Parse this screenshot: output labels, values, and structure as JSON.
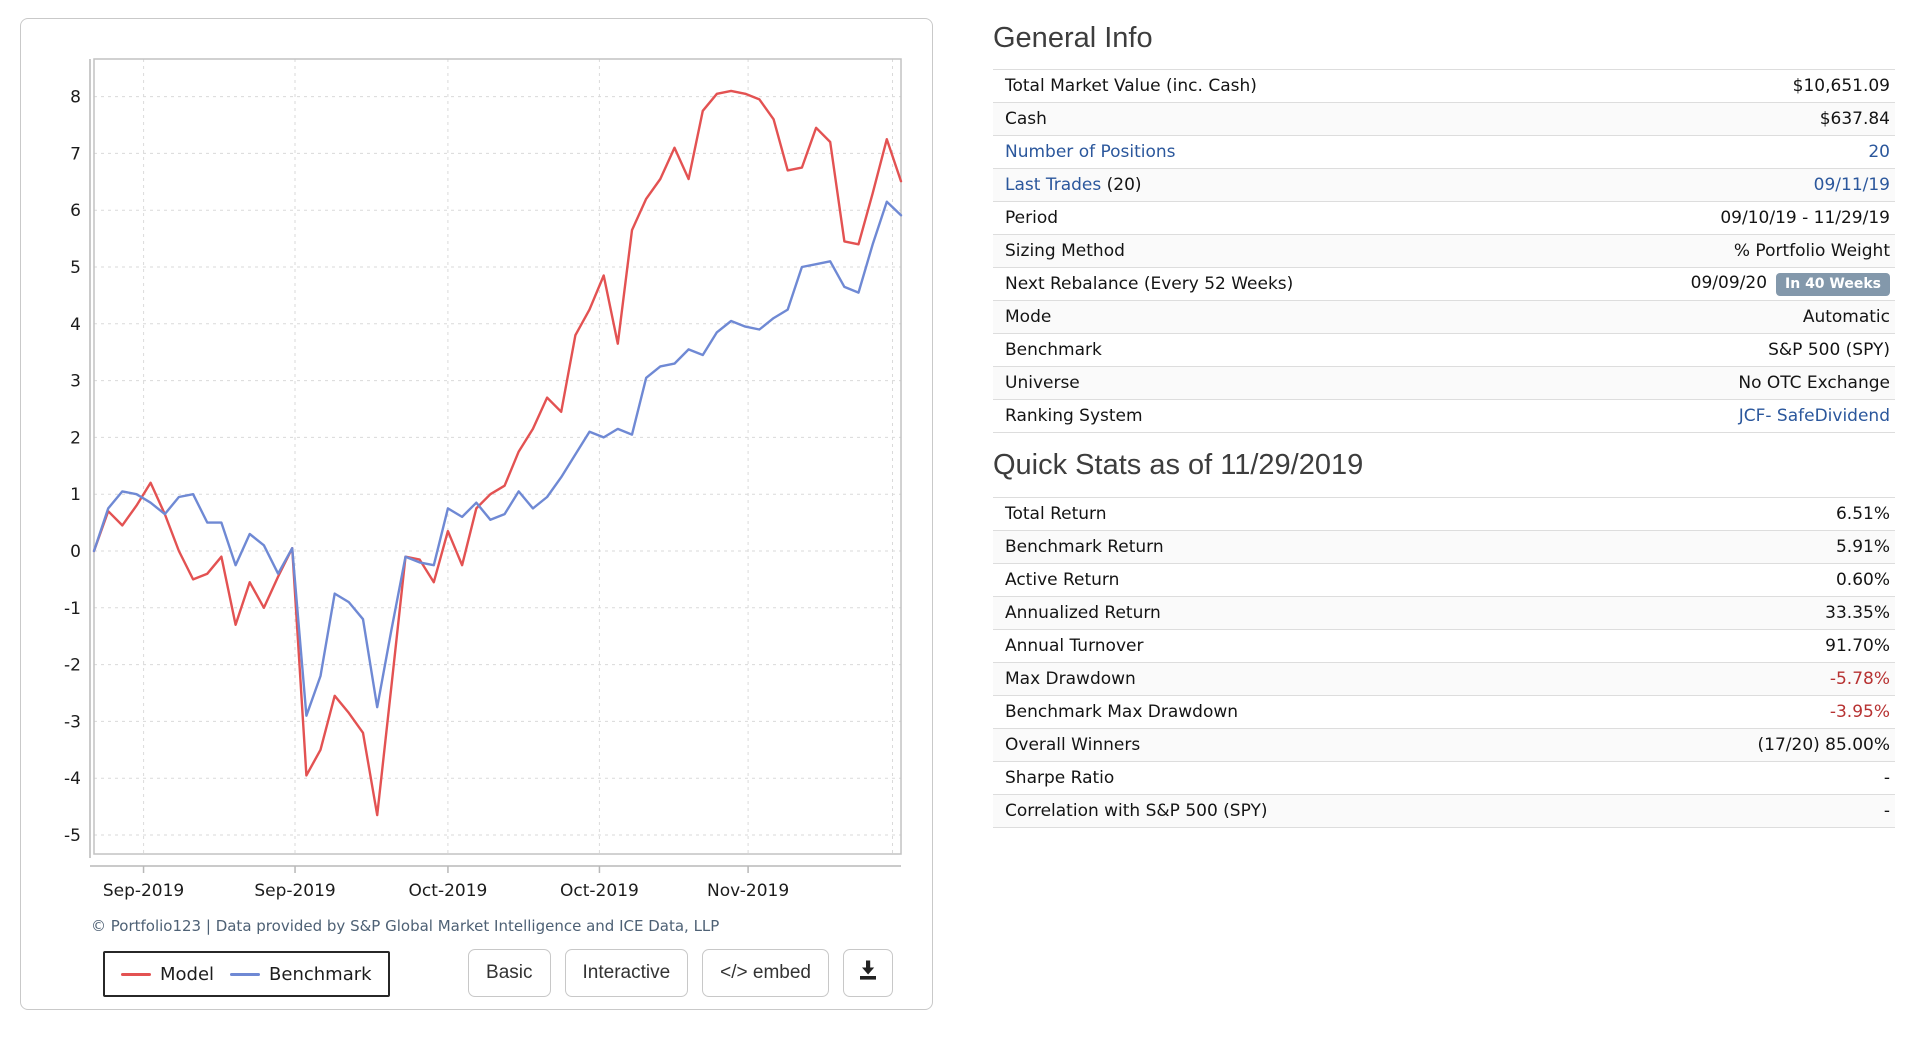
{
  "chart_card": {
    "attribution": "© Portfolio123 | Data provided by S&P Global Market Intelligence and ICE Data, LLP",
    "legend": [
      {
        "label": "Model",
        "color": "#e35252"
      },
      {
        "label": "Benchmark",
        "color": "#6f89d4"
      }
    ],
    "buttons": {
      "basic": "Basic",
      "interactive": "Interactive",
      "embed": "</> embed",
      "download_icon": "download-icon"
    }
  },
  "chart_data": {
    "type": "line",
    "title": "",
    "xlabel": "",
    "ylabel": "",
    "x_period": "09/10/19 - 11/29/19",
    "x_unit": "trading days",
    "ylim": [
      -5,
      8
    ],
    "grid": true,
    "legend_position": "bottom-left",
    "x_tick_labels": [
      "Sep-2019",
      "Sep-2019",
      "Oct-2019",
      "Oct-2019",
      "Nov-2019"
    ],
    "x_tick_positions": [
      3.5,
      14.2,
      25,
      35.7,
      46.2
    ],
    "extra_gridline_position": 56.4,
    "series": [
      {
        "name": "Model",
        "color": "#e35252",
        "values": [
          0.0,
          0.7,
          0.45,
          0.8,
          1.2,
          0.65,
          0.0,
          -0.5,
          -0.4,
          -0.1,
          -1.3,
          -0.55,
          -1.0,
          -0.45,
          0.05,
          -3.95,
          -3.5,
          -2.55,
          -2.85,
          -3.2,
          -4.65,
          -2.4,
          -0.1,
          -0.15,
          -0.55,
          0.35,
          -0.25,
          0.75,
          1.0,
          1.15,
          1.75,
          2.15,
          2.7,
          2.45,
          3.8,
          4.25,
          4.85,
          3.65,
          5.65,
          6.2,
          6.55,
          7.1,
          6.55,
          7.75,
          8.05,
          8.1,
          8.05,
          7.95,
          7.6,
          6.7,
          6.75,
          7.45,
          7.2,
          5.45,
          5.4,
          6.3,
          7.25,
          6.51
        ]
      },
      {
        "name": "Benchmark",
        "color": "#6f89d4",
        "values": [
          0.0,
          0.75,
          1.05,
          1.0,
          0.85,
          0.65,
          0.95,
          1.0,
          0.5,
          0.5,
          -0.25,
          0.3,
          0.1,
          -0.4,
          0.05,
          -2.9,
          -2.2,
          -0.75,
          -0.9,
          -1.2,
          -2.75,
          -1.4,
          -0.1,
          -0.2,
          -0.25,
          0.75,
          0.6,
          0.85,
          0.55,
          0.65,
          1.05,
          0.75,
          0.95,
          1.3,
          1.7,
          2.1,
          2.0,
          2.15,
          2.05,
          3.05,
          3.25,
          3.3,
          3.55,
          3.45,
          3.85,
          4.05,
          3.95,
          3.9,
          4.1,
          4.25,
          5.0,
          5.05,
          5.1,
          4.65,
          4.55,
          5.4,
          6.15,
          5.91
        ]
      }
    ]
  },
  "general_info": {
    "title": "General Info",
    "rows": [
      {
        "label": "Total Market Value (inc. Cash)",
        "value": "$10,651.09"
      },
      {
        "label": "Cash",
        "value": "$637.84"
      },
      {
        "label": "Number of Positions",
        "label_link": true,
        "value": "20",
        "value_link": true
      },
      {
        "label": "Last Trades",
        "label_link": true,
        "label_extra": " (20)",
        "value": "09/11/19",
        "value_link": true
      },
      {
        "label": "Period",
        "value": "09/10/19 - 11/29/19"
      },
      {
        "label": "Sizing Method",
        "value": "% Portfolio Weight"
      },
      {
        "label": "Next Rebalance (Every 52 Weeks)",
        "value": "09/09/20",
        "badge": "In 40 Weeks"
      },
      {
        "label": "Mode",
        "value": "Automatic"
      },
      {
        "label": "Benchmark",
        "value": "S&P 500 (SPY)"
      },
      {
        "label": "Universe",
        "value": "No OTC Exchange"
      },
      {
        "label": "Ranking System",
        "value": "JCF- SafeDividend",
        "value_link": true
      }
    ]
  },
  "quick_stats": {
    "title": "Quick Stats as of 11/29/2019",
    "rows": [
      {
        "label": "Total Return",
        "value": "6.51%"
      },
      {
        "label": "Benchmark Return",
        "value": "5.91%"
      },
      {
        "label": "Active Return",
        "value": "0.60%"
      },
      {
        "label": "Annualized Return",
        "value": "33.35%"
      },
      {
        "label": "Annual Turnover",
        "value": "91.70%"
      },
      {
        "label": "Max Drawdown",
        "value": "-5.78%",
        "value_negative": true
      },
      {
        "label": "Benchmark Max Drawdown",
        "value": "-3.95%",
        "value_negative": true
      },
      {
        "label": "Overall Winners",
        "value": "(17/20) 85.00%"
      },
      {
        "label": "Sharpe Ratio",
        "value": "-"
      },
      {
        "label": "Correlation with S&P 500 (SPY)",
        "value": "-"
      }
    ]
  }
}
